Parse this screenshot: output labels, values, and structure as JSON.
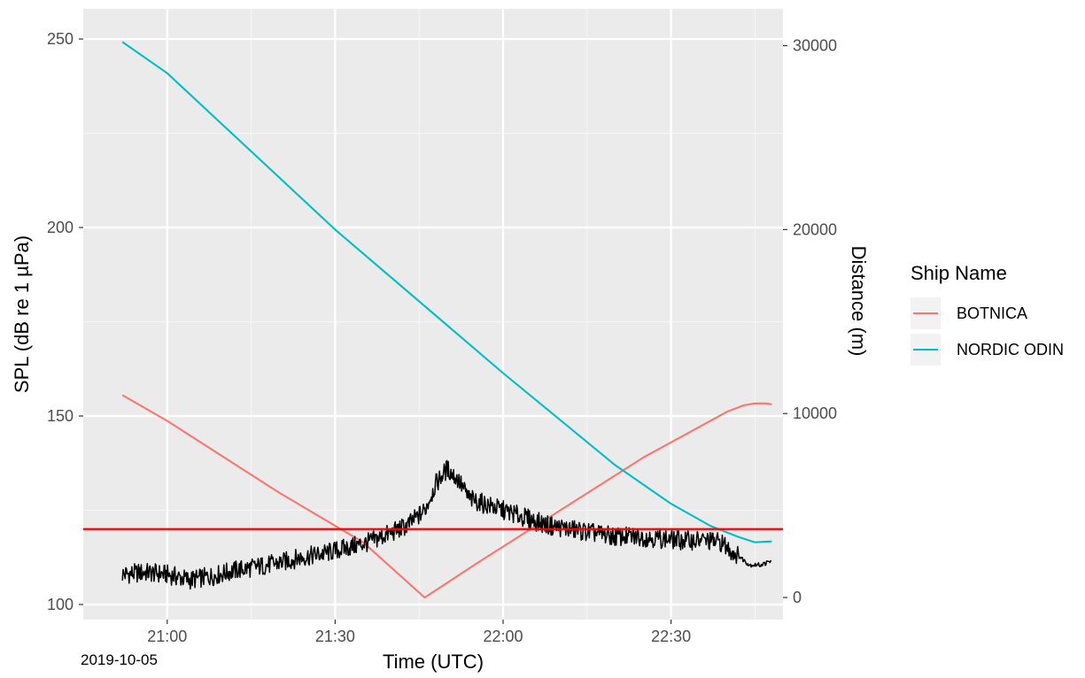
{
  "chart_data": {
    "type": "line",
    "xlabel": "Time (UTC)",
    "ylabel_left": "SPL (dB re 1 µPa)",
    "ylabel_right": "Distance (m)",
    "date_label": "2019-10-05",
    "x_ticks": [
      "21:00",
      "21:30",
      "22:00",
      "22:30"
    ],
    "y_left_ticks": [
      100,
      150,
      200,
      250
    ],
    "y_right_ticks": [
      0,
      10000,
      20000,
      30000
    ],
    "xlim": [
      "2019-10-05 20:45",
      "2019-10-05 22:50"
    ],
    "ylim_left": [
      96,
      258
    ],
    "ylim_right": [
      -1200,
      32000
    ],
    "grid": true,
    "threshold": {
      "value": 120,
      "color": "#ff0000"
    },
    "legend": {
      "title": "Ship Name",
      "position": "right",
      "entries": [
        {
          "label": "BOTNICA",
          "color": "#f8766d"
        },
        {
          "label": "NORDIC ODIN",
          "color": "#00bfc4"
        }
      ]
    },
    "series": [
      {
        "name": "BOTNICA",
        "axis": "right",
        "color": "#f8766d",
        "x": [
          "20:52",
          "21:00",
          "21:20",
          "21:35",
          "21:46",
          "21:55",
          "22:10",
          "22:25",
          "22:40",
          "22:43",
          "22:45",
          "22:47",
          "22:48"
        ],
        "y": [
          11000,
          9600,
          5700,
          3000,
          0,
          1800,
          4700,
          7600,
          10100,
          10450,
          10550,
          10550,
          10500
        ]
      },
      {
        "name": "NORDIC ODIN",
        "axis": "right",
        "color": "#00bfc4",
        "x": [
          "20:52",
          "21:00",
          "21:30",
          "22:00",
          "22:20",
          "22:30",
          "22:37",
          "22:42",
          "22:45",
          "22:48"
        ],
        "y": [
          30200,
          28500,
          20000,
          12200,
          7200,
          5100,
          3900,
          3300,
          3000,
          3050
        ]
      },
      {
        "name": "SPL",
        "axis": "left",
        "color": "#000000",
        "x": [
          "20:52",
          "20:56",
          "21:00",
          "21:04",
          "21:08",
          "21:12",
          "21:16",
          "21:20",
          "21:24",
          "21:28",
          "21:32",
          "21:36",
          "21:40",
          "21:43",
          "21:46",
          "21:48",
          "21:50",
          "21:52",
          "21:54",
          "21:56",
          "21:58",
          "22:00",
          "22:04",
          "22:08",
          "22:12",
          "22:16",
          "22:20",
          "22:24",
          "22:28",
          "22:32",
          "22:36",
          "22:39",
          "22:40",
          "22:42",
          "22:44",
          "22:46",
          "22:48"
        ],
        "y": [
          108,
          108.5,
          108,
          106.5,
          107.5,
          109,
          110,
          111,
          112.5,
          113.5,
          115,
          116.5,
          119,
          121,
          125,
          132,
          136,
          133,
          128,
          127,
          126,
          125,
          123,
          121,
          120,
          119,
          118,
          118,
          117.5,
          117,
          117,
          116.5,
          115,
          113,
          110.5,
          110.5,
          111.5
        ]
      }
    ]
  }
}
